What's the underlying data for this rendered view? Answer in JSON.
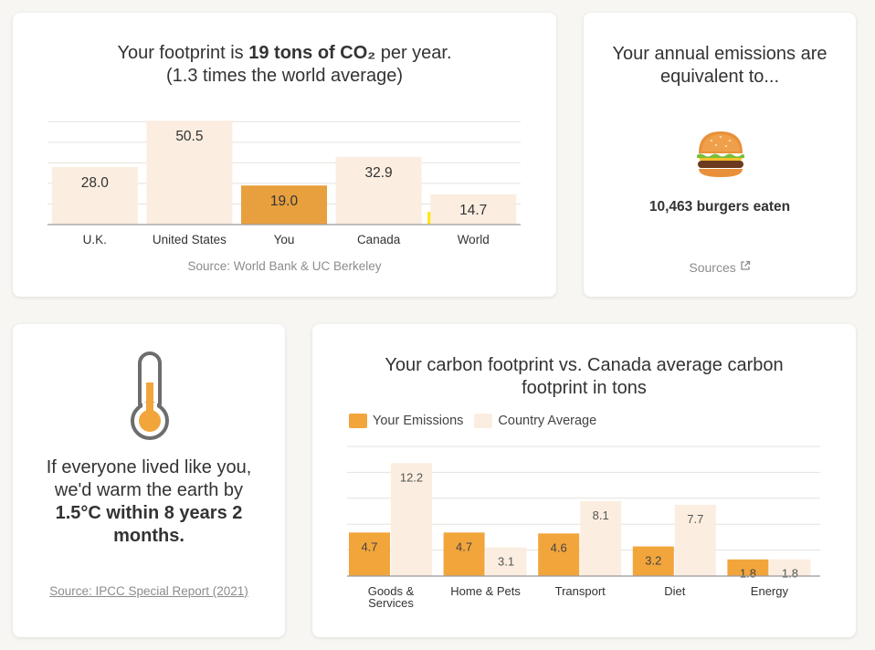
{
  "colors": {
    "you": "#f2a53b",
    "you_dark": "#e8a03f",
    "country": "#fbeee0",
    "grid": "#e6e2dc",
    "axis": "#999999",
    "world_marker": "#ffe600"
  },
  "footprint": {
    "title_prefix": "Your footprint is ",
    "title_bold": "19 tons of CO₂",
    "title_suffix": " per year.",
    "subtitle": "(1.3 times the world average)",
    "source": "Source: World Bank & UC Berkeley"
  },
  "equivalent": {
    "title": "Your annual emissions are equivalent to...",
    "icon": "burger-icon",
    "value": "10,463 burgers eaten",
    "sources_label": "Sources"
  },
  "thermometer": {
    "icon": "thermometer-icon",
    "text_prefix": "If everyone lived like you, we'd warm the earth by ",
    "text_bold": "1.5°C within 8 years 2 months.",
    "source": "Source: IPCC Special Report (2021)"
  },
  "comparison": {
    "title": "Your carbon footprint vs. Canada average carbon footprint in tons"
  },
  "chart_data": [
    {
      "type": "bar",
      "categories": [
        "U.K.",
        "United States",
        "You",
        "Canada",
        "World"
      ],
      "values": [
        28.0,
        50.5,
        19.0,
        32.9,
        14.7
      ],
      "highlight": "You",
      "ylim": [
        0,
        55
      ],
      "grid": true
    },
    {
      "type": "bar",
      "categories": [
        "Goods & Services",
        "Home & Pets",
        "Transport",
        "Diet",
        "Energy"
      ],
      "series": [
        {
          "name": "Your Emissions",
          "values": [
            4.7,
            4.7,
            4.6,
            3.2,
            1.8
          ]
        },
        {
          "name": "Country Average",
          "values": [
            12.2,
            3.1,
            8.1,
            7.7,
            1.8
          ]
        }
      ],
      "ylim": [
        0,
        14
      ],
      "grid": true,
      "legend": "top-left"
    }
  ]
}
